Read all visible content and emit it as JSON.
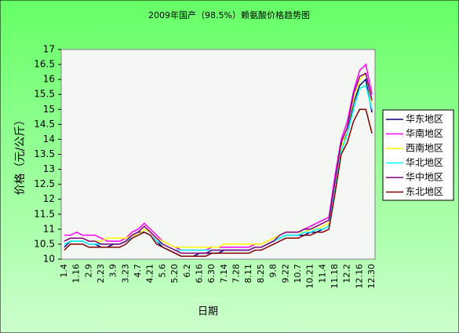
{
  "chart_data": {
    "type": "line",
    "title": "2009年国产（98.5%）赖氨酸价格趋势图",
    "x_label": "日期",
    "y_label": "价格（元/公斤）",
    "categories": [
      "1.4",
      null,
      "1.16",
      null,
      "2.9",
      null,
      "2.23",
      null,
      "3.9",
      null,
      "3.23",
      null,
      "4.7",
      null,
      "4.21",
      null,
      "5.6",
      null,
      "5.20",
      null,
      "6.2",
      null,
      "6.16",
      null,
      "6.30",
      null,
      "7.14",
      null,
      "7.28",
      null,
      "8.11",
      null,
      "8.25",
      null,
      "9.8",
      null,
      "9.22",
      null,
      "10.7",
      null,
      "10.21",
      null,
      "11.4",
      null,
      "11.18",
      null,
      "12.2",
      null,
      "12.16",
      null,
      "12.30"
    ],
    "ylim": [
      10,
      17
    ],
    "yticks": [
      10,
      10.5,
      11,
      11.5,
      12,
      12.5,
      13,
      13.5,
      14,
      14.5,
      15,
      15.5,
      16,
      16.5,
      17
    ],
    "legend": "right",
    "series": [
      {
        "name": "华东地区",
        "color": "#000080",
        "values": [
          10.4,
          10.6,
          10.6,
          10.6,
          10.5,
          10.5,
          10.4,
          10.4,
          10.5,
          10.5,
          10.6,
          10.8,
          10.9,
          10.9,
          10.8,
          10.6,
          10.4,
          10.3,
          10.2,
          10.1,
          10.1,
          10.1,
          10.2,
          10.2,
          10.2,
          10.2,
          10.3,
          10.3,
          10.3,
          10.3,
          10.3,
          10.4,
          10.4,
          10.5,
          10.6,
          10.7,
          10.8,
          10.8,
          10.8,
          10.8,
          10.9,
          10.9,
          11.0,
          11.1,
          12.5,
          13.8,
          14.2,
          15.2,
          15.8,
          16.0,
          14.9
        ]
      },
      {
        "name": "华南地区",
        "color": "#ff00ff",
        "values": [
          10.8,
          10.8,
          10.9,
          10.8,
          10.8,
          10.8,
          10.7,
          10.6,
          10.6,
          10.6,
          10.7,
          10.9,
          11.0,
          11.2,
          11.0,
          10.8,
          10.6,
          10.5,
          10.4,
          10.3,
          10.3,
          10.3,
          10.3,
          10.3,
          10.4,
          10.4,
          10.4,
          10.4,
          10.4,
          10.4,
          10.4,
          10.5,
          10.5,
          10.6,
          10.7,
          10.8,
          10.9,
          10.9,
          10.9,
          11.0,
          11.1,
          11.2,
          11.3,
          11.4,
          12.8,
          14.0,
          14.6,
          15.6,
          16.3,
          16.5,
          15.5
        ]
      },
      {
        "name": "西南地区",
        "color": "#ffff00",
        "values": [
          10.6,
          10.7,
          10.7,
          10.7,
          10.6,
          10.6,
          10.6,
          10.7,
          10.7,
          10.7,
          10.7,
          10.8,
          10.8,
          11.0,
          10.9,
          10.7,
          10.6,
          10.5,
          10.4,
          10.4,
          10.4,
          10.4,
          10.4,
          10.4,
          10.4,
          10.4,
          10.5,
          10.5,
          10.5,
          10.5,
          10.5,
          10.5,
          10.5,
          10.6,
          10.7,
          10.8,
          10.9,
          10.9,
          10.9,
          10.9,
          11.0,
          11.0,
          11.1,
          11.2,
          12.4,
          13.7,
          14.4,
          15.3,
          16.0,
          16.2,
          15.2
        ]
      },
      {
        "name": "华北地区",
        "color": "#00ffff",
        "values": [
          10.5,
          10.6,
          10.6,
          10.6,
          10.5,
          10.5,
          10.5,
          10.5,
          10.5,
          10.5,
          10.6,
          10.7,
          10.8,
          10.9,
          10.8,
          10.6,
          10.5,
          10.4,
          10.3,
          10.3,
          10.3,
          10.3,
          10.3,
          10.3,
          10.3,
          10.3,
          10.3,
          10.3,
          10.3,
          10.3,
          10.3,
          10.4,
          10.4,
          10.5,
          10.6,
          10.7,
          10.8,
          10.8,
          10.8,
          10.9,
          10.9,
          11.0,
          11.0,
          11.1,
          12.3,
          13.6,
          14.2,
          15.0,
          15.7,
          15.8,
          15.0
        ]
      },
      {
        "name": "华中地区",
        "color": "#800080",
        "values": [
          10.6,
          10.7,
          10.7,
          10.7,
          10.6,
          10.6,
          10.5,
          10.5,
          10.5,
          10.5,
          10.6,
          10.8,
          10.9,
          11.1,
          10.9,
          10.7,
          10.5,
          10.4,
          10.3,
          10.2,
          10.2,
          10.2,
          10.2,
          10.2,
          10.3,
          10.3,
          10.3,
          10.3,
          10.3,
          10.3,
          10.3,
          10.4,
          10.4,
          10.5,
          10.6,
          10.8,
          10.9,
          10.9,
          10.9,
          11.0,
          11.0,
          11.1,
          11.2,
          11.3,
          12.6,
          13.9,
          14.4,
          15.5,
          16.1,
          16.2,
          15.3
        ]
      },
      {
        "name": "东北地区",
        "color": "#800000",
        "values": [
          10.3,
          10.5,
          10.5,
          10.5,
          10.4,
          10.4,
          10.4,
          10.4,
          10.4,
          10.4,
          10.5,
          10.7,
          10.8,
          10.9,
          10.8,
          10.5,
          10.4,
          10.3,
          10.2,
          10.1,
          10.1,
          10.1,
          10.1,
          10.1,
          10.2,
          10.2,
          10.2,
          10.2,
          10.2,
          10.2,
          10.2,
          10.3,
          10.3,
          10.4,
          10.5,
          10.6,
          10.7,
          10.7,
          10.7,
          10.8,
          10.8,
          10.9,
          10.9,
          11.0,
          12.2,
          13.5,
          13.9,
          14.6,
          15.0,
          15.0,
          14.2
        ]
      }
    ]
  }
}
